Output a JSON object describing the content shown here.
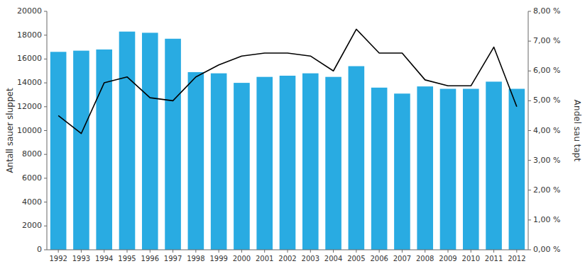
{
  "chart_data": {
    "type": "bar",
    "y_label": "Antall sauer sluppet",
    "y2_label": "Andel sau tapt",
    "categories": [
      "1992",
      "1993",
      "1994",
      "1995",
      "1996",
      "1997",
      "1998",
      "1999",
      "2000",
      "2001",
      "2002",
      "2003",
      "2004",
      "2005",
      "2006",
      "2007",
      "2008",
      "2009",
      "2010",
      "2011",
      "2012"
    ],
    "series": [
      {
        "type": "bar",
        "color": "#29ABE2",
        "values": [
          16600,
          16700,
          16800,
          18300,
          18200,
          17700,
          14900,
          14800,
          14000,
          14500,
          14600,
          14800,
          14500,
          15400,
          13600,
          13100,
          13700,
          13500,
          13500,
          14100,
          13500
        ]
      },
      {
        "type": "line",
        "axis": "y2",
        "color": "#000000",
        "values": [
          4.5,
          3.9,
          5.6,
          5.8,
          5.1,
          5.0,
          5.8,
          6.2,
          6.5,
          6.6,
          6.6,
          6.5,
          6.0,
          7.4,
          6.6,
          6.6,
          5.7,
          5.5,
          5.5,
          6.8,
          4.8
        ]
      }
    ],
    "ylim": [
      0,
      20000
    ],
    "yticks": [
      0,
      2000,
      4000,
      6000,
      8000,
      10000,
      12000,
      14000,
      16000,
      18000,
      20000
    ],
    "y2lim": [
      0.0,
      8.0
    ],
    "y2ticks": [
      {
        "value": 0.0,
        "label": "0,00 %"
      },
      {
        "value": 1.0,
        "label": "1,00 %"
      },
      {
        "value": 2.0,
        "label": "2,00 %"
      },
      {
        "value": 3.0,
        "label": "3,00 %"
      },
      {
        "value": 4.0,
        "label": "4,00 %"
      },
      {
        "value": 5.0,
        "label": "5,00 %"
      },
      {
        "value": 6.0,
        "label": "6,00 %"
      },
      {
        "value": 7.0,
        "label": "7,00 %"
      },
      {
        "value": 8.0,
        "label": "8,00 %"
      }
    ],
    "grid": false
  }
}
